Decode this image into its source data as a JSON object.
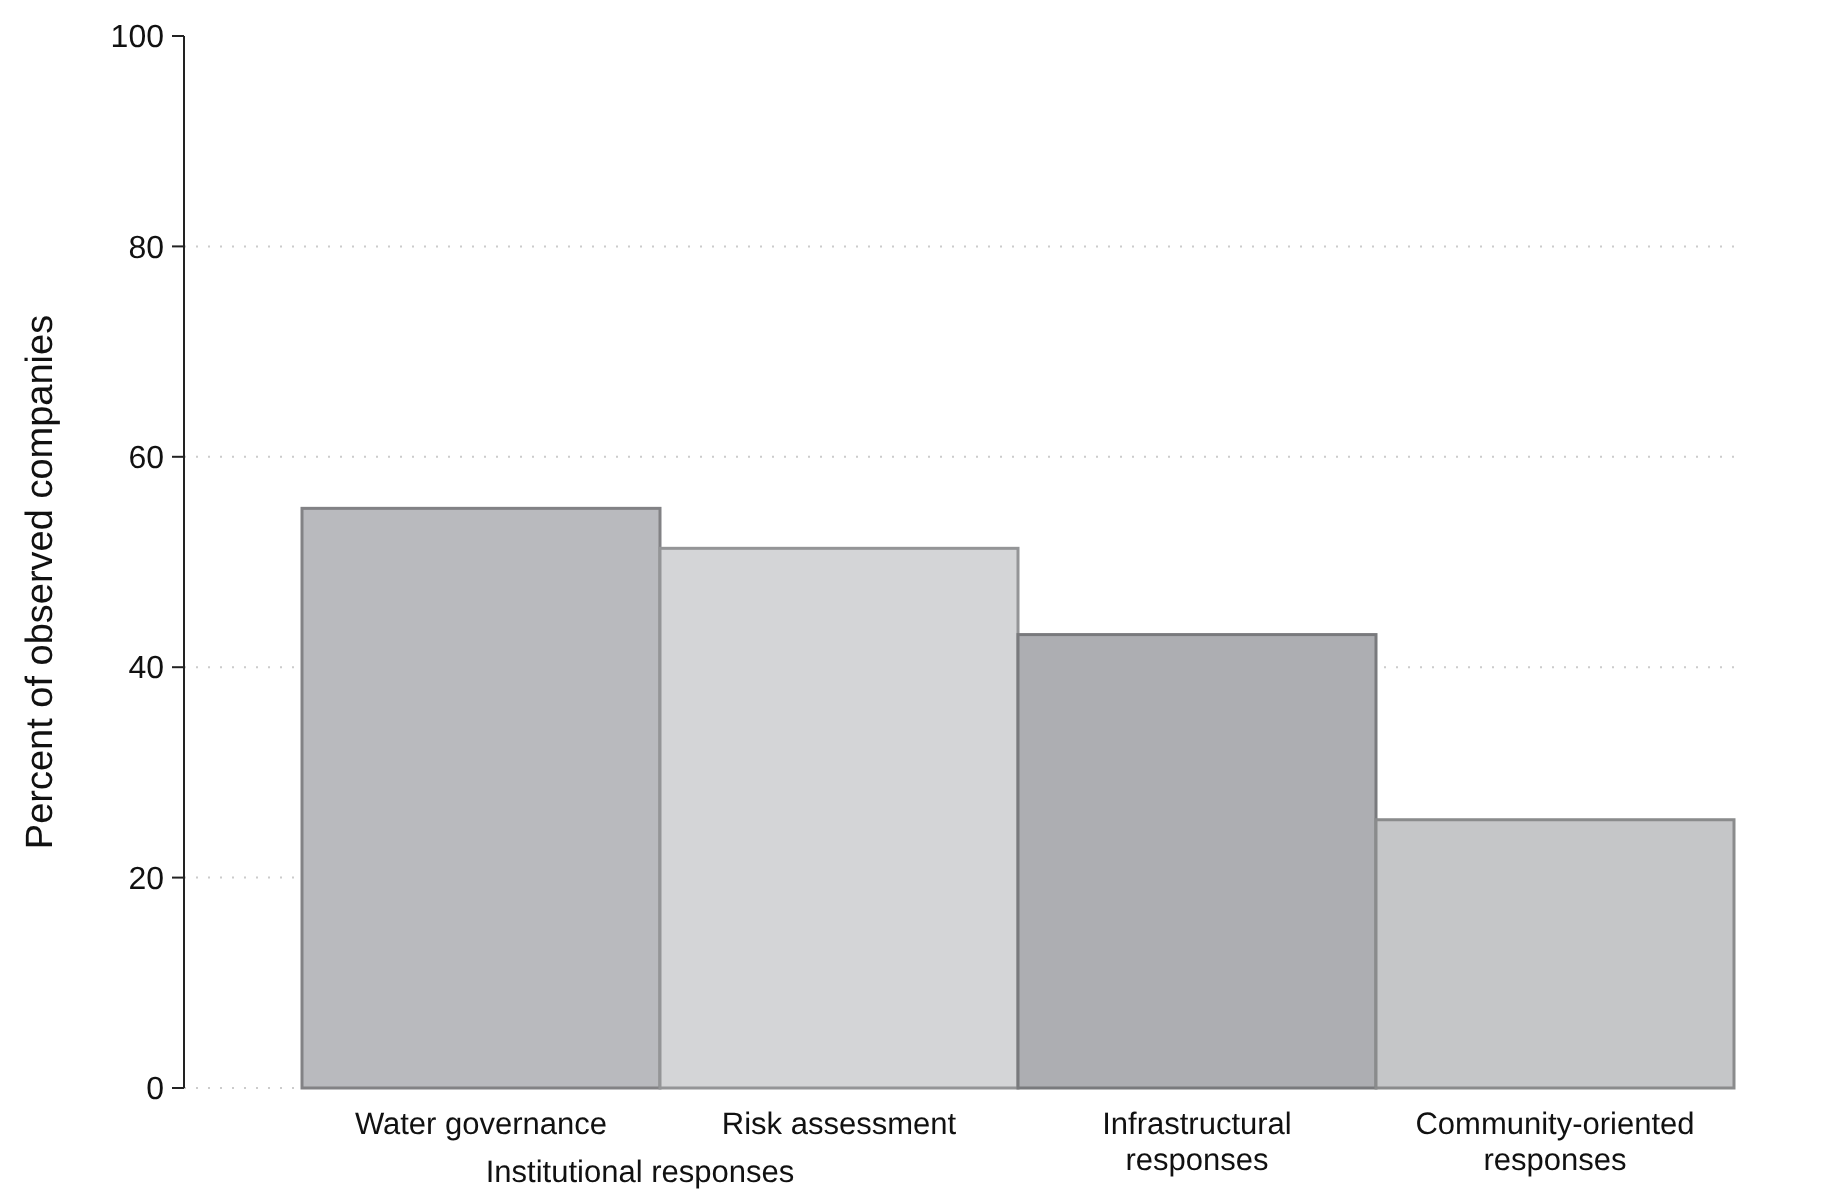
{
  "chart_data": {
    "type": "bar",
    "ylabel": "Percent of observed companies",
    "xlabel": "Institutional responses",
    "categories": [
      "Water governance",
      "Risk assessment",
      "Infrastructural\nresponses",
      "Community-oriented\nresponses"
    ],
    "values": [
      55.1,
      51.3,
      43.1,
      25.5
    ],
    "colors": [
      "#b9babe",
      "#d4d5d7",
      "#adaeb2",
      "#c5c6c8"
    ],
    "ylim": [
      0,
      100
    ],
    "yticks": [
      0,
      20,
      40,
      60,
      80,
      100
    ],
    "grid": "y"
  }
}
